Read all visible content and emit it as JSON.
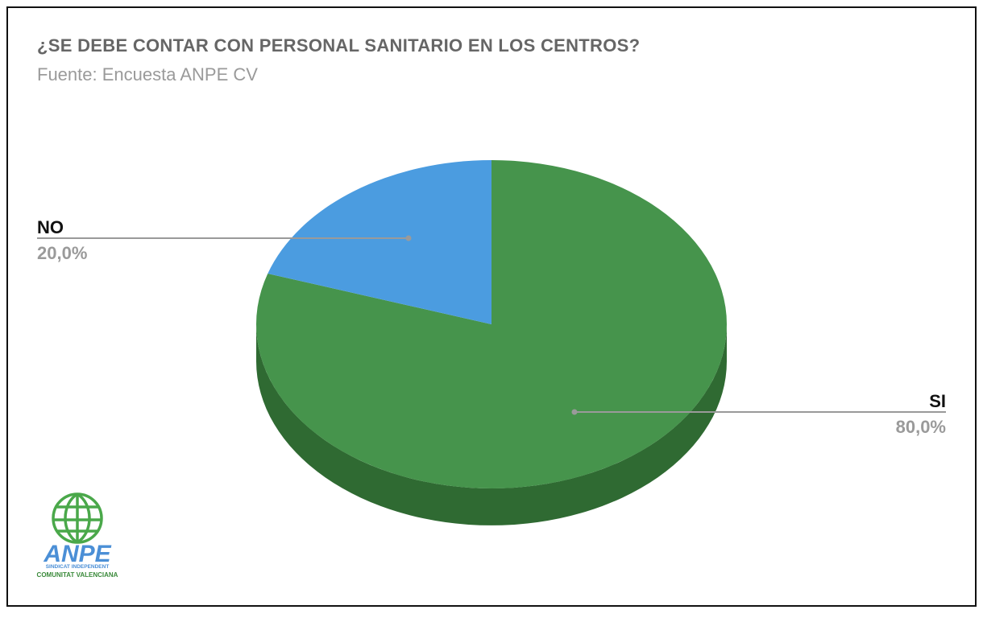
{
  "chart_data": {
    "type": "pie",
    "title": "¿SE DEBE CONTAR CON PERSONAL SANITARIO EN LOS CENTROS?",
    "subtitle": "Fuente: Encuesta ANPE CV",
    "style": "3d",
    "slices": [
      {
        "label": "SI",
        "value": 80.0,
        "value_label": "80,0%",
        "color": "#46944c",
        "side_color": "#2f6a32",
        "label_side": "right"
      },
      {
        "label": "NO",
        "value": 20.0,
        "value_label": "20,0%",
        "color": "#4b9ce0",
        "side_color": "#356fa3",
        "label_side": "left"
      }
    ],
    "legend": "none"
  },
  "logo": {
    "name": "ANPE",
    "line1": "SINDICAT INDEPENDENT",
    "line2": "COMUNITAT VALENCIANA",
    "color_globe": "#4aa84a",
    "color_text": "#4b8fd6"
  }
}
